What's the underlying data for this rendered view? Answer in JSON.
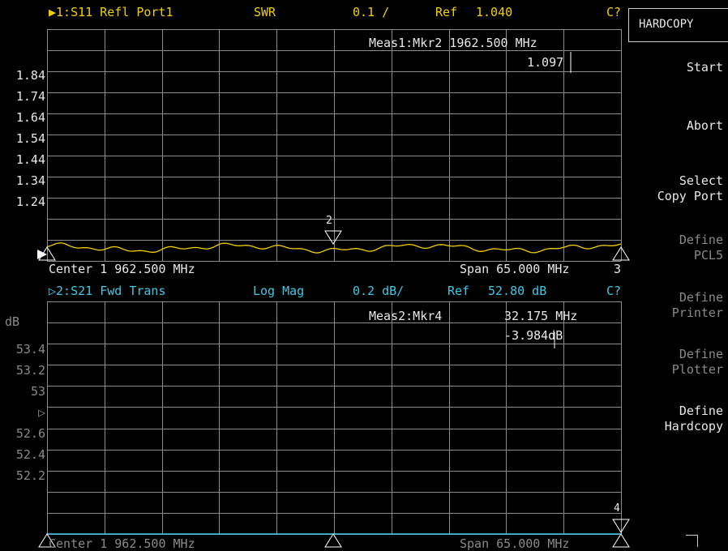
{
  "trace1": {
    "channel": "▶1:S11 Refl Port1",
    "format": "SWR",
    "scale": "0.1 /",
    "ref_label": "Ref",
    "ref_value": "1.040",
    "status": "C?",
    "marker_readout": "Meas1:Mkr2 1962.500 MHz",
    "marker_value": "1.097",
    "y_ticks": [
      "1.84",
      "1.74",
      "1.64",
      "1.54",
      "1.44",
      "1.34",
      "1.24"
    ],
    "marker_label": "2",
    "center": "Center 1 962.500 MHz",
    "span": "Span 65.000 MHz",
    "end_marker": "3"
  },
  "trace2": {
    "channel": "▷2:S21 Fwd Trans",
    "format": "Log Mag",
    "scale": "0.2 dB/",
    "ref_label": "Ref",
    "ref_value": "52.80 dB",
    "status": "C?",
    "marker_readout": "Meas2:Mkr4",
    "marker_freq": "32.175 MHz",
    "marker_value": "-3.984dB",
    "unit": "dB",
    "y_ticks": [
      "53.4",
      "53.2",
      "53",
      "▷",
      "52.6",
      "52.4",
      "52.2"
    ],
    "marker_label": "4",
    "center": "Center 1 962.500 MHz",
    "span": "Span 65.000 MHz"
  },
  "menu": {
    "title": "HARDCOPY",
    "items": [
      {
        "label": "Start",
        "enabled": true
      },
      {
        "label": "Abort",
        "enabled": true
      },
      {
        "label": "Select\nCopy Port",
        "enabled": true
      },
      {
        "label": "Define\nPCL5",
        "enabled": false
      },
      {
        "label": "Define\nPrinter",
        "enabled": false
      },
      {
        "label": "Define\nPlotter",
        "enabled": false
      },
      {
        "label": "Define\nHardcopy",
        "enabled": true
      }
    ],
    "return_icon": "return-arrow-icon"
  },
  "colors": {
    "trace1": "#f2d000",
    "trace2": "#3fc8e6",
    "grid": "#8c8c8c"
  }
}
